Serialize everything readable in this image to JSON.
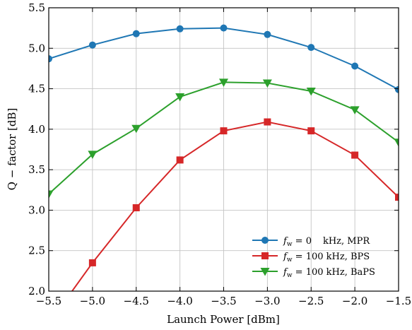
{
  "chart_data": {
    "type": "line",
    "title": "",
    "xlabel": "Launch Power [dBm]",
    "ylabel": "Q − factor [dB]",
    "xlim": [
      -5.5,
      -1.5
    ],
    "ylim": [
      2.0,
      5.5
    ],
    "grid": true,
    "legend_position": "bottom-right",
    "xticks": [
      -5.5,
      -5.0,
      -4.5,
      -4.0,
      -3.5,
      -3.0,
      -2.5,
      -2.0,
      -1.5
    ],
    "xtick_labels": [
      "−5.5",
      "−5.0",
      "−4.5",
      "−4.0",
      "−3.5",
      "−3.0",
      "−2.5",
      "−2.0",
      "−1.5"
    ],
    "yticks": [
      2.0,
      2.5,
      3.0,
      3.5,
      4.0,
      4.5,
      5.0,
      5.5
    ],
    "ytick_labels": [
      "2.0",
      "2.5",
      "3.0",
      "3.5",
      "4.0",
      "4.5",
      "5.0",
      "5.5"
    ],
    "x": [
      -5.5,
      -5.0,
      -4.5,
      -4.0,
      -3.5,
      -3.0,
      -2.5,
      -2.0,
      -1.5
    ],
    "series": [
      {
        "name": "f_w = 0 kHz, MPR",
        "legend_parts": [
          "f",
          "w",
          " = 0",
          "kHz, MPR"
        ],
        "color": "#1f77b4",
        "marker": "circle",
        "values": [
          4.87,
          5.04,
          5.18,
          5.24,
          5.25,
          5.17,
          5.01,
          4.78,
          4.49
        ]
      },
      {
        "name": "f_w = 100 kHz, BPS",
        "legend_parts": [
          "f",
          "w",
          " = 100 kHz, BPS",
          ""
        ],
        "color": "#d62728",
        "marker": "square",
        "values": [
          1.6,
          2.35,
          3.03,
          3.62,
          3.98,
          4.09,
          3.98,
          3.68,
          3.16
        ]
      },
      {
        "name": "f_w = 100 kHz, BaPS",
        "legend_parts": [
          "f",
          "w",
          " = 100 kHz, BaPS",
          ""
        ],
        "color": "#2ca02c",
        "marker": "triangle-down",
        "values": [
          3.2,
          3.69,
          4.01,
          4.4,
          4.58,
          4.57,
          4.47,
          4.24,
          3.84
        ]
      }
    ]
  }
}
